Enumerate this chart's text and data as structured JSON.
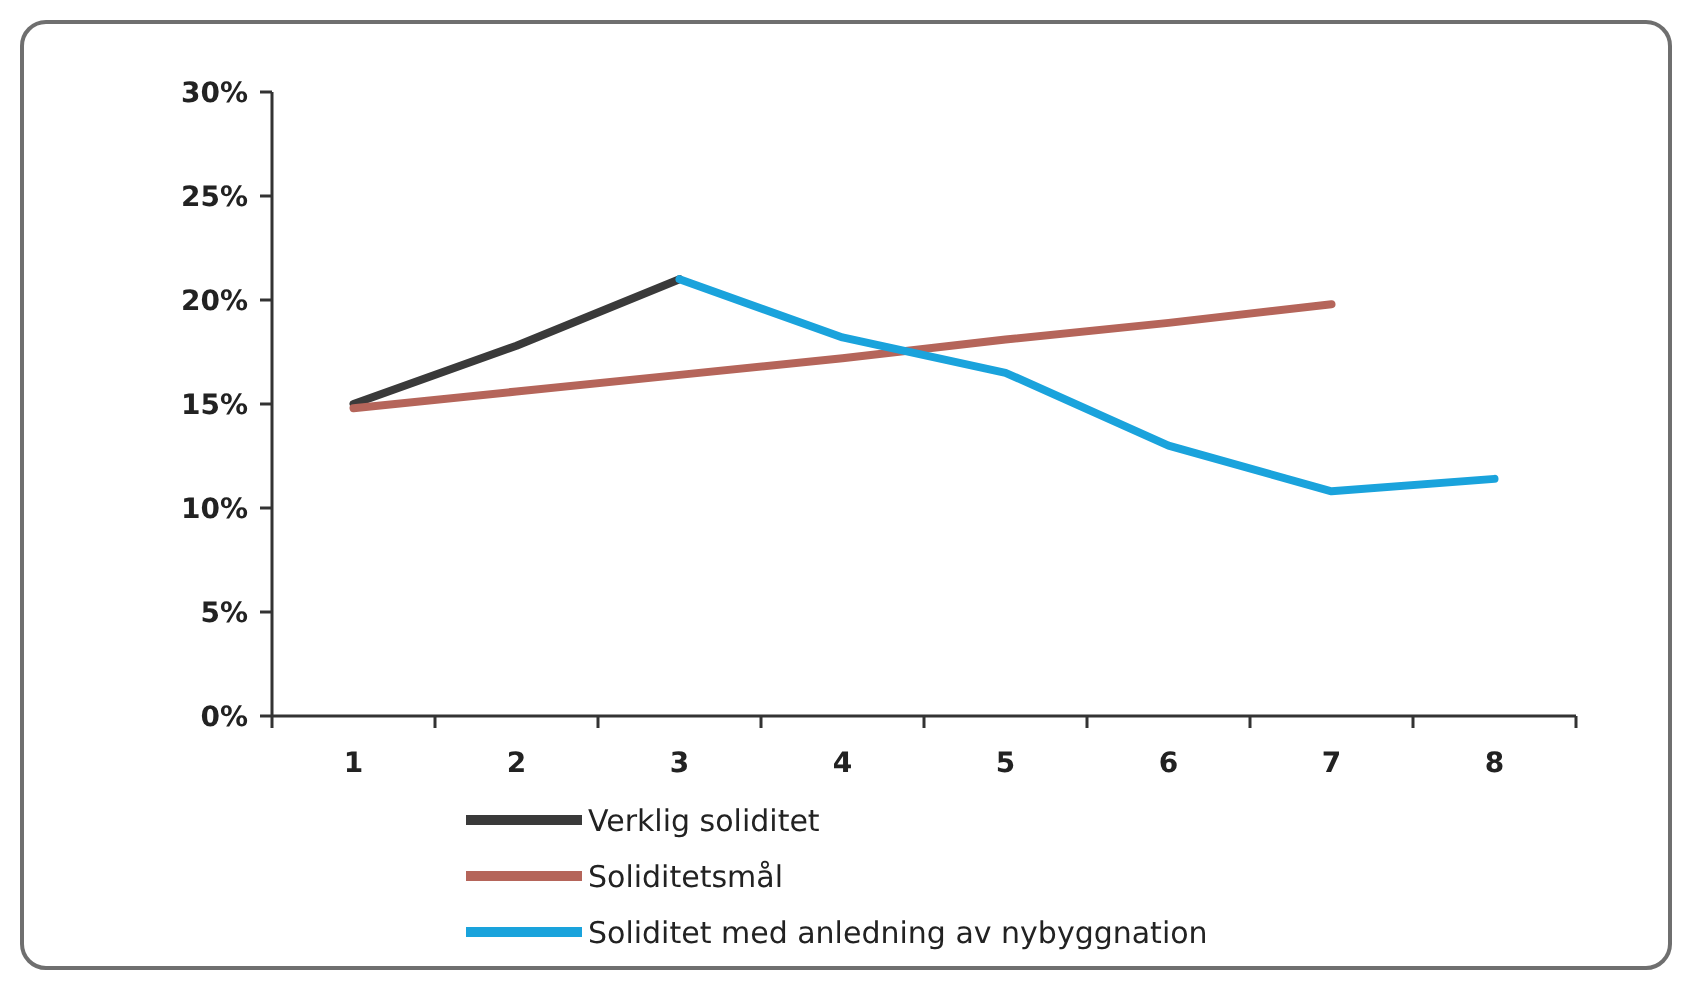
{
  "chart_data": {
    "type": "line",
    "categories": [
      "1",
      "2",
      "3",
      "4",
      "5",
      "6",
      "7",
      "8"
    ],
    "ylim": [
      0,
      30
    ],
    "yticks": [
      {
        "value": 0,
        "label": "0%"
      },
      {
        "value": 5,
        "label": "5%"
      },
      {
        "value": 10,
        "label": "10%"
      },
      {
        "value": 15,
        "label": "15%"
      },
      {
        "value": 20,
        "label": "20%"
      },
      {
        "value": 25,
        "label": "25%"
      },
      {
        "value": 30,
        "label": "30%"
      }
    ],
    "grid": false,
    "legend": "bottom",
    "marker": "none",
    "line_style": "solid",
    "series": [
      {
        "name": "Verklig soliditet",
        "color": "#3a3a3a",
        "values": [
          15,
          17.8,
          21,
          null,
          null,
          null,
          null,
          null
        ]
      },
      {
        "name": "Soliditetsmål",
        "color": "#b5655a",
        "values": [
          14.8,
          15.6,
          16.4,
          17.2,
          18.1,
          18.9,
          19.8,
          null
        ]
      },
      {
        "name": "Soliditet med anledning av nybyggnation",
        "color": "#1aa3dc",
        "values": [
          null,
          null,
          21,
          18.2,
          16.5,
          13,
          10.8,
          11.4
        ]
      }
    ]
  }
}
